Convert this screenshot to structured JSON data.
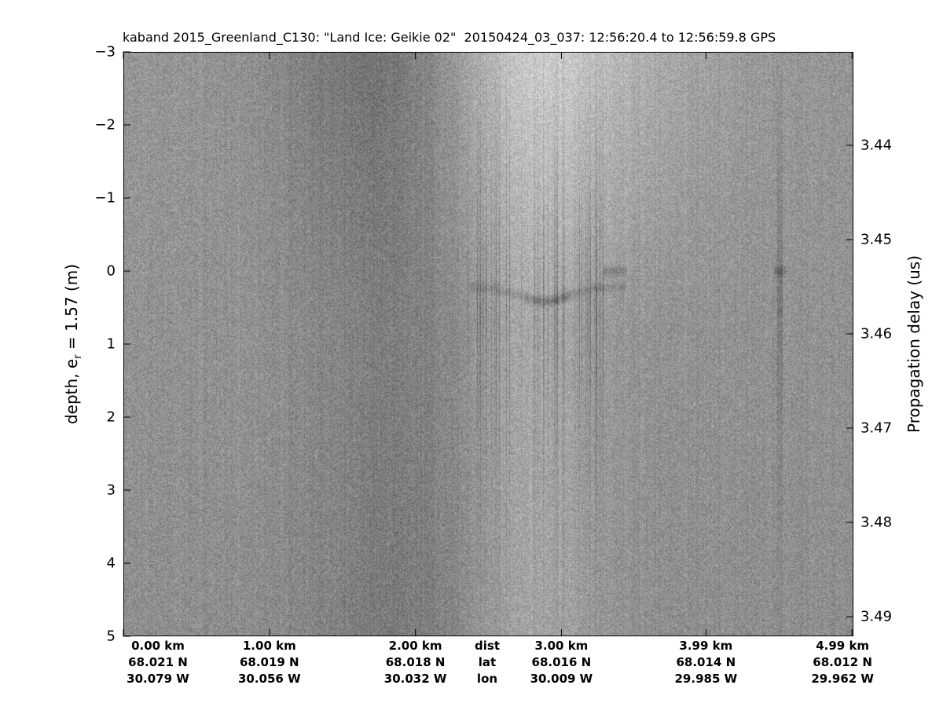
{
  "chart_data": {
    "type": "heatmap",
    "title": "kaband 2015_Greenland_C130: \"Land Ice: Geikie 02\"  20150424_03_037: 12:56:20.4 to 12:56:59.8 GPS",
    "colormap": "gray (dark = strong return)",
    "ylabel_left": {
      "prefix": "depth, e",
      "sub": "r",
      "suffix": " = 1.57 (m)"
    },
    "ylabel_right": "Propagation delay (us)",
    "ylim_left": [
      -3,
      5
    ],
    "yticks_left": [
      "-3",
      "-2",
      "-1",
      "0",
      "1",
      "2",
      "3",
      "4",
      "5"
    ],
    "yticks_left_values": [
      -3,
      -2,
      -1,
      0,
      1,
      2,
      3,
      4,
      5
    ],
    "yticks_right": [
      "3.44",
      "3.45",
      "3.46",
      "3.47",
      "3.48",
      "3.49"
    ],
    "yticks_right_values": [
      3.44,
      3.45,
      3.46,
      3.47,
      3.48,
      3.49
    ],
    "y_reversed": true,
    "x_ticks": [
      {
        "dist": "0.00 km",
        "lat": "68.021 N",
        "lon": "30.079 W"
      },
      {
        "dist": "1.00 km",
        "lat": "68.019 N",
        "lon": "30.056 W"
      },
      {
        "dist": "2.00 km",
        "lat": "68.018 N",
        "lon": "30.032 W"
      },
      {
        "dist": "3.00 km",
        "lat": "68.016 N",
        "lon": "30.009 W"
      },
      {
        "dist": "3.99 km",
        "lat": "68.014 N",
        "lon": "29.985 W"
      },
      {
        "dist": "4.99 km",
        "lat": "68.012 N",
        "lon": "29.962 W"
      }
    ],
    "x_tick_km": [
      0,
      1.0,
      2.0,
      3.0,
      3.99,
      4.99
    ],
    "x_row_labels": {
      "dist": "dist",
      "lat": "lat",
      "lon": "lon"
    },
    "features": {
      "surface_depth_m": 0,
      "strong_return_km": [
        2.4,
        3.3
      ]
    }
  }
}
